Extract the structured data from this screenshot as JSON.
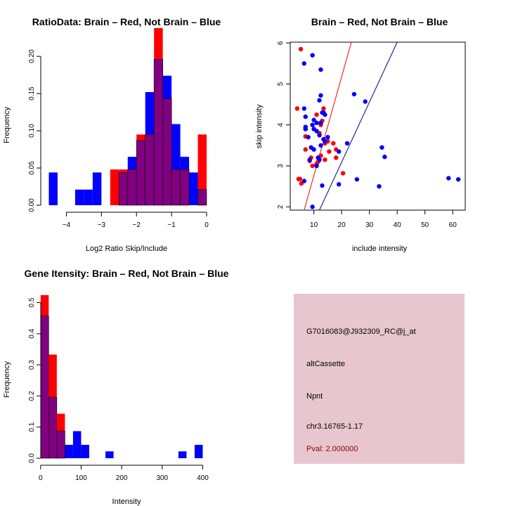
{
  "chart_data": [
    {
      "type": "bar",
      "title": "RatioData: Brain – Red, Not Brain – Blue",
      "xlabel": "Log2 Ratio Skip/Include",
      "ylabel": "Frequency",
      "xlim": [
        -4.55,
        0
      ],
      "ylim": [
        0,
        0.22
      ],
      "xticks": [
        -4,
        -3,
        -2,
        -1,
        0
      ],
      "yticks": [
        0.0,
        0.05,
        0.1,
        0.15,
        0.2
      ],
      "ytick_labels": [
        "0.00",
        "0.05",
        "0.10",
        "0.15",
        "0.20"
      ],
      "bin_width": 0.25,
      "series": [
        {
          "name": "Not Brain",
          "color": "#0000ff",
          "bins": [
            [
              -4.5,
              0.044
            ],
            [
              -3.75,
              0.021
            ],
            [
              -3.5,
              0.021
            ],
            [
              -3.25,
              0.044
            ],
            [
              -2.5,
              0.044
            ],
            [
              -2.25,
              0.065
            ],
            [
              -2.0,
              0.087
            ],
            [
              -1.75,
              0.152
            ],
            [
              -1.5,
              0.196
            ],
            [
              -1.25,
              0.174
            ],
            [
              -1.0,
              0.109
            ],
            [
              -0.75,
              0.065
            ],
            [
              -0.5,
              0.044
            ],
            [
              -0.25,
              0.021
            ]
          ]
        },
        {
          "name": "Brain",
          "color": "#ff0000",
          "bins": [
            [
              -2.75,
              0.048
            ],
            [
              -2.5,
              0.048
            ],
            [
              -2.25,
              0.048
            ],
            [
              -2.0,
              0.095
            ],
            [
              -1.75,
              0.095
            ],
            [
              -1.5,
              0.238
            ],
            [
              -1.25,
              0.143
            ],
            [
              -1.0,
              0.048
            ],
            [
              -0.75,
              0.048
            ],
            [
              -0.25,
              0.095
            ]
          ]
        }
      ]
    },
    {
      "type": "scatter",
      "title": "Brain – Red, Not Brain – Blue",
      "xlabel": "include intensity",
      "ylabel": "skip intensity",
      "xlim": [
        1.5,
        64.5
      ],
      "ylim": [
        1.92,
        6.02
      ],
      "xticks": [
        10,
        20,
        30,
        40,
        50,
        60
      ],
      "yticks": [
        2,
        3,
        4,
        5,
        6
      ],
      "lines": [
        {
          "name": "brain-fit",
          "color": "#ff0000",
          "points": [
            [
              6.5,
              1.92
            ],
            [
              23.5,
              6.02
            ]
          ]
        },
        {
          "name": "not-brain-fit",
          "color": "#00008b",
          "points": [
            [
              12,
              1.92
            ],
            [
              40,
              6.02
            ]
          ]
        }
      ],
      "series": [
        {
          "name": "Brain",
          "color": "#ff0000",
          "points": [
            [
              5.3,
              5.85
            ],
            [
              4,
              4.4
            ],
            [
              13.5,
              4.4
            ],
            [
              11,
              4.25
            ],
            [
              7,
              3.9
            ],
            [
              7,
              3.72
            ],
            [
              13,
              4.1
            ],
            [
              12.5,
              4
            ],
            [
              12,
              3.8
            ],
            [
              15,
              3.6
            ],
            [
              14,
              3.55
            ],
            [
              17,
              3.55
            ],
            [
              18,
              3.4
            ],
            [
              15.5,
              3.35
            ],
            [
              7,
              3.4
            ],
            [
              9,
              3.2
            ],
            [
              8.5,
              3.12
            ],
            [
              14,
              3.15
            ],
            [
              18,
              3.2
            ],
            [
              11.5,
              3.1
            ],
            [
              12.5,
              3.25
            ],
            [
              11,
              3.05
            ],
            [
              9.5,
              3
            ],
            [
              20.5,
              2.82
            ],
            [
              4.5,
              2.68
            ],
            [
              5,
              2.68
            ],
            [
              5.5,
              2.57
            ]
          ]
        },
        {
          "name": "Not Brain",
          "color": "#0000ff",
          "points": [
            [
              9.5,
              5.7
            ],
            [
              6.5,
              5.5
            ],
            [
              12.5,
              5.35
            ],
            [
              12.5,
              4.72
            ],
            [
              12,
              4.6
            ],
            [
              6.5,
              4.4
            ],
            [
              24.5,
              4.75
            ],
            [
              28.5,
              4.57
            ],
            [
              13,
              4.3
            ],
            [
              13.5,
              4.3
            ],
            [
              14,
              4.25
            ],
            [
              7,
              4.2
            ],
            [
              10,
              4.12
            ],
            [
              11,
              4.05
            ],
            [
              12.5,
              4.05
            ],
            [
              9.5,
              4.0
            ],
            [
              7,
              3.95
            ],
            [
              10,
              3.9
            ],
            [
              7,
              3.9
            ],
            [
              11,
              3.85
            ],
            [
              12,
              3.75
            ],
            [
              8,
              3.7
            ],
            [
              15,
              3.7
            ],
            [
              13.5,
              3.65
            ],
            [
              14,
              3.6
            ],
            [
              12.5,
              3.5
            ],
            [
              9,
              3.45
            ],
            [
              10,
              3.4
            ],
            [
              19,
              3.35
            ],
            [
              22,
              3.55
            ],
            [
              34.5,
              3.45
            ],
            [
              35.5,
              3.22
            ],
            [
              11.5,
              3.2
            ],
            [
              12,
              3.15
            ],
            [
              8.5,
              3.15
            ],
            [
              11,
              3.0
            ],
            [
              19,
              2.55
            ],
            [
              25.5,
              2.67
            ],
            [
              33.5,
              2.5
            ],
            [
              13,
              2.52
            ],
            [
              6.5,
              2.63
            ],
            [
              58.5,
              2.7
            ],
            [
              62,
              2.67
            ],
            [
              9.5,
              2.0
            ]
          ]
        }
      ]
    },
    {
      "type": "bar",
      "title": "Gene Itensity: Brain – Red, Not Brain – Blue",
      "xlabel": "Intensity",
      "ylabel": "Frequency",
      "xlim": [
        -10,
        420
      ],
      "ylim": [
        0,
        0.56
      ],
      "xticks": [
        0,
        100,
        200,
        300,
        400
      ],
      "yticks": [
        0.0,
        0.1,
        0.2,
        0.3,
        0.4,
        0.5
      ],
      "ytick_labels": [
        "0.0",
        "0.1",
        "0.2",
        "0.3",
        "0.4",
        "0.5"
      ],
      "bin_width": 20,
      "series": [
        {
          "name": "Not Brain",
          "color": "#0000ff",
          "bins": [
            [
              0,
              0.457
            ],
            [
              20,
              0.196
            ],
            [
              40,
              0.087
            ],
            [
              60,
              0.043
            ],
            [
              80,
              0.087
            ],
            [
              100,
              0.043
            ],
            [
              160,
              0.022
            ],
            [
              340,
              0.022
            ],
            [
              380,
              0.043
            ]
          ]
        },
        {
          "name": "Brain",
          "color": "#ff0000",
          "bins": [
            [
              0,
              0.524
            ],
            [
              20,
              0.333
            ],
            [
              40,
              0.143
            ]
          ]
        }
      ]
    }
  ],
  "info_panel": {
    "background": "#e8c6cf",
    "probe_id": "G7016083@J932309_RC@j_at",
    "event_type": "altCassette",
    "gene": "Npnt",
    "location": "chr3.16765-1.17",
    "pval": "Pval: 2.000000"
  }
}
